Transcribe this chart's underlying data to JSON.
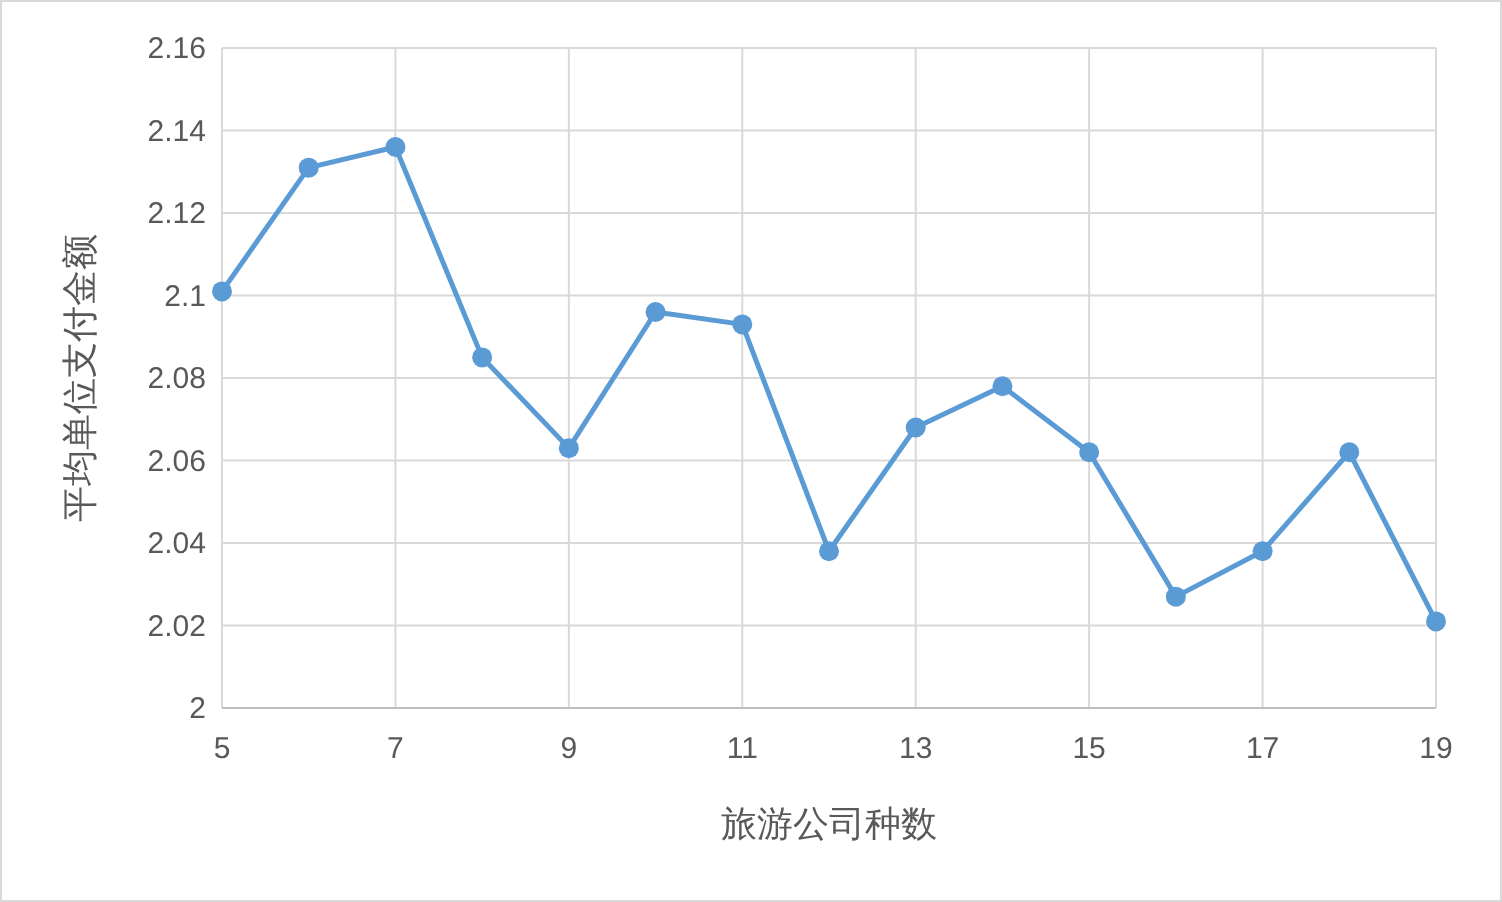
{
  "chart_data": {
    "type": "line",
    "xlabel": "旅游公司种数",
    "ylabel": "平均单位支付金额",
    "x": [
      5,
      6,
      7,
      8,
      9,
      10,
      11,
      12,
      13,
      14,
      15,
      16,
      17,
      18,
      19
    ],
    "series": [
      {
        "color": "#5b9bd5",
        "values": [
          2.101,
          2.131,
          2.136,
          2.085,
          2.063,
          2.096,
          2.093,
          2.038,
          2.068,
          2.078,
          2.062,
          2.027,
          2.038,
          2.062,
          2.021
        ]
      }
    ],
    "xlim": [
      5,
      19
    ],
    "xticks": [
      5,
      7,
      9,
      11,
      13,
      15,
      17,
      19
    ],
    "ylim": [
      2,
      2.16
    ],
    "yticks": [
      2,
      2.02,
      2.04,
      2.06,
      2.08,
      2.1,
      2.12,
      2.14,
      2.16
    ],
    "grid": true,
    "marker": "circle",
    "line_style": "solid"
  }
}
